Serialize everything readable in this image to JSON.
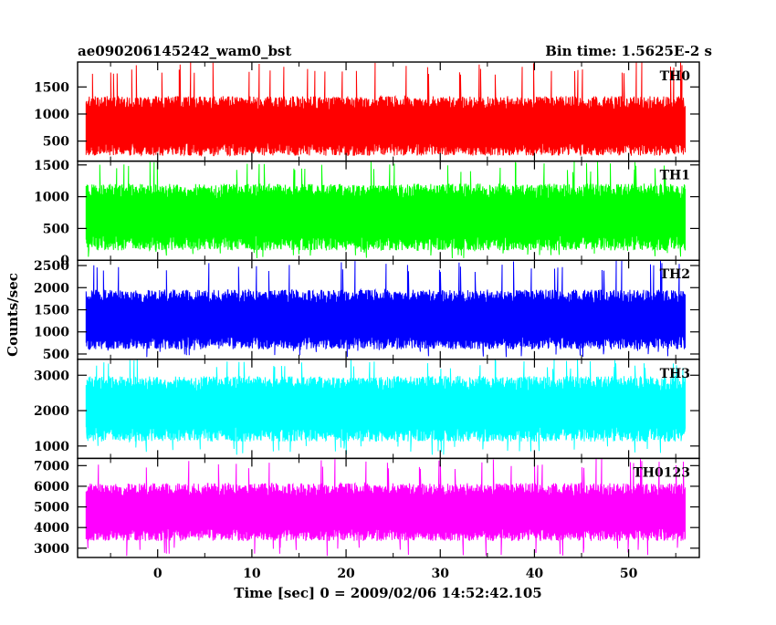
{
  "header": {
    "left_title": "ae090206145242_wam0_bst",
    "right_title": "Bin time: 1.5625E-2 s"
  },
  "axes": {
    "xlabel": "Time [sec] 0 = 2009/02/06 14:52:42.105",
    "ylabel": "Counts/sec"
  },
  "chart_data": {
    "type": "line",
    "x_range": [
      -8.5,
      57.5
    ],
    "x_ticks": [
      0,
      10,
      20,
      30,
      40,
      50
    ],
    "data_x_range": [
      -7.6,
      56.0
    ],
    "grid": false,
    "panels": [
      {
        "label": "TH0",
        "color": "#ff0000",
        "ylim": [
          130,
          1960
        ],
        "yticks": [
          500,
          1000,
          1500
        ],
        "mean": 780,
        "typical_low": 350,
        "typical_high": 1450,
        "min": 230,
        "max": 1960
      },
      {
        "label": "TH1",
        "color": "#00ff00",
        "ylim": [
          0,
          1560
        ],
        "yticks": [
          0,
          500,
          1000,
          1500
        ],
        "mean": 680,
        "typical_low": 200,
        "typical_high": 1250,
        "min": 30,
        "max": 1560
      },
      {
        "label": "TH2",
        "color": "#0000ff",
        "ylim": [
          380,
          2620
        ],
        "yticks": [
          500,
          1000,
          1500,
          2000,
          2500
        ],
        "mean": 1280,
        "typical_low": 700,
        "typical_high": 2050,
        "min": 420,
        "max": 2620
      },
      {
        "label": "TH3",
        "color": "#00ffff",
        "ylim": [
          650,
          3450
        ],
        "yticks": [
          1000,
          2000,
          3000
        ],
        "mean": 2050,
        "typical_low": 1250,
        "typical_high": 3100,
        "min": 750,
        "max": 3450
      },
      {
        "label": "TH0123",
        "color": "#ff00ff",
        "ylim": [
          2550,
          7350
        ],
        "yticks": [
          3000,
          4000,
          5000,
          6000,
          7000
        ],
        "mean": 4750,
        "typical_low": 3500,
        "typical_high": 6300,
        "min": 2600,
        "max": 7350
      }
    ]
  }
}
